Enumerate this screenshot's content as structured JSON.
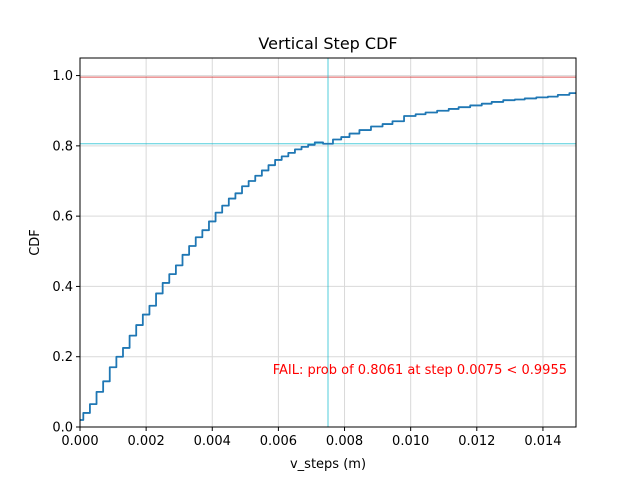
{
  "chart_data": {
    "type": "line",
    "title": "Vertical Step CDF",
    "xlabel": "v_steps (m)",
    "ylabel": "CDF",
    "xlim": [
      0,
      0.015
    ],
    "ylim": [
      0,
      1.05
    ],
    "grid": true,
    "x_ticks": [
      0.0,
      0.002,
      0.004,
      0.006,
      0.008,
      0.01,
      0.012,
      0.014
    ],
    "x_tick_labels": [
      "0.000",
      "0.002",
      "0.004",
      "0.006",
      "0.008",
      "0.010",
      "0.012",
      "0.014"
    ],
    "y_ticks": [
      0.0,
      0.2,
      0.4,
      0.6,
      0.8,
      1.0
    ],
    "y_tick_labels": [
      "0.0",
      "0.2",
      "0.4",
      "0.6",
      "0.8",
      "1.0"
    ],
    "series": [
      {
        "color": "#1f77b4",
        "x": [
          0,
          0.0002,
          0.0004,
          0.0006,
          0.0008,
          0.001,
          0.0012,
          0.0014,
          0.0016,
          0.0018,
          0.002,
          0.0022,
          0.0024,
          0.0026,
          0.0028,
          0.003,
          0.0032,
          0.0034,
          0.0036,
          0.0038,
          0.004,
          0.0042,
          0.0044,
          0.0046,
          0.0048,
          0.005,
          0.0052,
          0.0054,
          0.0056,
          0.0058,
          0.006,
          0.0062,
          0.0064,
          0.0066,
          0.0068,
          0.007,
          0.0072,
          0.0075,
          0.0078,
          0.008,
          0.0083,
          0.0086,
          0.009,
          0.0093,
          0.0096,
          0.01,
          0.0103,
          0.0106,
          0.011,
          0.0113,
          0.0116,
          0.012,
          0.0123,
          0.0126,
          0.013,
          0.0133,
          0.0136,
          0.014,
          0.0143,
          0.0146,
          0.015
        ],
        "y": [
          0.02,
          0.04,
          0.065,
          0.1,
          0.13,
          0.17,
          0.2,
          0.225,
          0.26,
          0.29,
          0.32,
          0.345,
          0.38,
          0.41,
          0.435,
          0.46,
          0.49,
          0.515,
          0.54,
          0.56,
          0.585,
          0.61,
          0.63,
          0.65,
          0.665,
          0.685,
          0.7,
          0.715,
          0.73,
          0.745,
          0.76,
          0.77,
          0.78,
          0.79,
          0.797,
          0.803,
          0.81,
          0.8061,
          0.818,
          0.825,
          0.835,
          0.845,
          0.855,
          0.862,
          0.87,
          0.885,
          0.89,
          0.895,
          0.9,
          0.905,
          0.91,
          0.915,
          0.92,
          0.925,
          0.93,
          0.932,
          0.935,
          0.938,
          0.94,
          0.945,
          0.95
        ]
      }
    ],
    "reference_lines": {
      "horizontal": [
        {
          "y": 0.9955,
          "color": "#d62728"
        },
        {
          "y": 0.8061,
          "color": "#17becf"
        }
      ],
      "vertical": [
        {
          "x": 0.0075,
          "color": "#17becf"
        }
      ]
    },
    "annotations": [
      {
        "text": "FAIL: prob of 0.8061 at step 0.0075 < 0.9955",
        "color": "#ff0000",
        "position": "lower-right"
      }
    ]
  }
}
